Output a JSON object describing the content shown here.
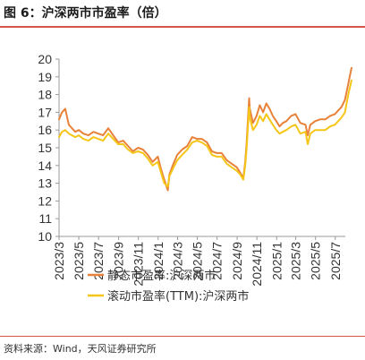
{
  "figure": {
    "title": "图 6：沪深两市市盈率（倍）",
    "source": "资料来源：Wind，天风证券研究所"
  },
  "chart_data": {
    "type": "line",
    "title": "",
    "xlabel": "",
    "ylabel": "",
    "ylim": [
      10,
      20
    ],
    "yticks": [
      10,
      11,
      12,
      13,
      14,
      15,
      16,
      17,
      18,
      19,
      20
    ],
    "xlim": [
      "2023-03",
      "2025-08"
    ],
    "xticks": [
      "2023/3",
      "2023/5",
      "2023/7",
      "2023/9",
      "2023/11",
      "2024/1",
      "2024/3",
      "2024/5",
      "2024/7",
      "2024/9",
      "2024/11",
      "2025/1",
      "2025/3",
      "2025/5",
      "2025/7"
    ],
    "grid": false,
    "legend_position": "bottom",
    "series": [
      {
        "name": "静态市盈率:沪深两市",
        "color": "#e8823a",
        "x": [
          "2023-03-01",
          "2023-03-10",
          "2023-03-20",
          "2023-03-31",
          "2023-04-10",
          "2023-04-20",
          "2023-05-01",
          "2023-05-15",
          "2023-05-31",
          "2023-06-15",
          "2023-06-30",
          "2023-07-15",
          "2023-07-31",
          "2023-08-15",
          "2023-08-31",
          "2023-09-15",
          "2023-09-30",
          "2023-10-15",
          "2023-10-31",
          "2023-11-15",
          "2023-11-30",
          "2023-12-15",
          "2023-12-31",
          "2024-01-10",
          "2024-01-20",
          "2024-01-31",
          "2024-02-05",
          "2024-02-15",
          "2024-02-29",
          "2024-03-15",
          "2024-03-31",
          "2024-04-15",
          "2024-04-30",
          "2024-05-15",
          "2024-05-31",
          "2024-06-15",
          "2024-06-30",
          "2024-07-15",
          "2024-07-31",
          "2024-08-15",
          "2024-08-31",
          "2024-09-10",
          "2024-09-20",
          "2024-09-26",
          "2024-09-30",
          "2024-10-08",
          "2024-10-10",
          "2024-10-20",
          "2024-10-31",
          "2024-11-10",
          "2024-11-20",
          "2024-11-30",
          "2024-12-10",
          "2024-12-20",
          "2024-12-31",
          "2025-01-10",
          "2025-01-20",
          "2025-01-31",
          "2025-02-15",
          "2025-02-28",
          "2025-03-15",
          "2025-03-31",
          "2025-04-07",
          "2025-04-15",
          "2025-04-30",
          "2025-05-15",
          "2025-05-31",
          "2025-06-15",
          "2025-06-30",
          "2025-07-10",
          "2025-07-20",
          "2025-07-31",
          "2025-08-10",
          "2025-08-20"
        ],
        "values": [
          16.6,
          17.0,
          17.2,
          16.3,
          16.1,
          15.9,
          16.0,
          15.8,
          15.7,
          15.9,
          15.8,
          15.7,
          16.1,
          15.7,
          15.3,
          15.4,
          15.1,
          14.8,
          15.0,
          14.9,
          14.6,
          14.2,
          14.5,
          13.8,
          13.2,
          12.6,
          13.5,
          14.0,
          14.6,
          14.9,
          15.1,
          15.6,
          15.5,
          15.5,
          15.3,
          14.8,
          14.7,
          14.7,
          14.3,
          14.1,
          13.9,
          13.6,
          13.3,
          14.2,
          15.2,
          17.8,
          17.2,
          16.4,
          16.8,
          17.4,
          17.0,
          17.5,
          17.2,
          16.8,
          16.5,
          16.2,
          16.4,
          16.5,
          16.8,
          16.9,
          16.4,
          16.3,
          15.7,
          16.3,
          16.5,
          16.6,
          16.6,
          16.8,
          16.9,
          17.1,
          17.3,
          17.7,
          18.6,
          19.5
        ]
      },
      {
        "name": "滚动市盈率(TTM):沪深两市",
        "color": "#f5c518",
        "x": [
          "2023-03-01",
          "2023-03-10",
          "2023-03-20",
          "2023-03-31",
          "2023-04-10",
          "2023-04-20",
          "2023-05-01",
          "2023-05-15",
          "2023-05-31",
          "2023-06-15",
          "2023-06-30",
          "2023-07-15",
          "2023-07-31",
          "2023-08-15",
          "2023-08-31",
          "2023-09-15",
          "2023-09-30",
          "2023-10-15",
          "2023-10-31",
          "2023-11-15",
          "2023-11-30",
          "2023-12-15",
          "2023-12-31",
          "2024-01-10",
          "2024-01-20",
          "2024-01-31",
          "2024-02-05",
          "2024-02-15",
          "2024-02-29",
          "2024-03-15",
          "2024-03-31",
          "2024-04-15",
          "2024-04-30",
          "2024-05-15",
          "2024-05-31",
          "2024-06-15",
          "2024-06-30",
          "2024-07-15",
          "2024-07-31",
          "2024-08-15",
          "2024-08-31",
          "2024-09-10",
          "2024-09-20",
          "2024-09-26",
          "2024-09-30",
          "2024-10-08",
          "2024-10-10",
          "2024-10-20",
          "2024-10-31",
          "2024-11-10",
          "2024-11-20",
          "2024-11-30",
          "2024-12-10",
          "2024-12-20",
          "2024-12-31",
          "2025-01-10",
          "2025-01-20",
          "2025-01-31",
          "2025-02-15",
          "2025-02-28",
          "2025-03-15",
          "2025-03-31",
          "2025-04-07",
          "2025-04-15",
          "2025-04-30",
          "2025-05-15",
          "2025-05-31",
          "2025-06-15",
          "2025-06-30",
          "2025-07-10",
          "2025-07-20",
          "2025-07-31",
          "2025-08-10",
          "2025-08-20"
        ],
        "values": [
          15.6,
          15.9,
          16.0,
          15.8,
          15.7,
          15.6,
          15.7,
          15.5,
          15.4,
          15.6,
          15.5,
          15.4,
          15.8,
          15.5,
          15.2,
          15.2,
          14.9,
          14.7,
          14.8,
          14.7,
          14.4,
          14.0,
          14.2,
          13.6,
          13.0,
          12.8,
          13.4,
          13.8,
          14.3,
          14.6,
          14.9,
          15.3,
          15.4,
          15.3,
          15.1,
          14.6,
          14.5,
          14.5,
          14.1,
          13.9,
          13.7,
          13.5,
          13.2,
          14.0,
          14.9,
          17.3,
          16.7,
          16.0,
          16.3,
          16.8,
          16.5,
          16.9,
          16.6,
          16.3,
          16.0,
          15.8,
          15.9,
          16.0,
          16.2,
          16.3,
          15.8,
          15.9,
          15.2,
          15.8,
          16.0,
          16.0,
          16.0,
          16.2,
          16.3,
          16.5,
          16.7,
          17.0,
          18.0,
          18.8
        ]
      }
    ]
  }
}
